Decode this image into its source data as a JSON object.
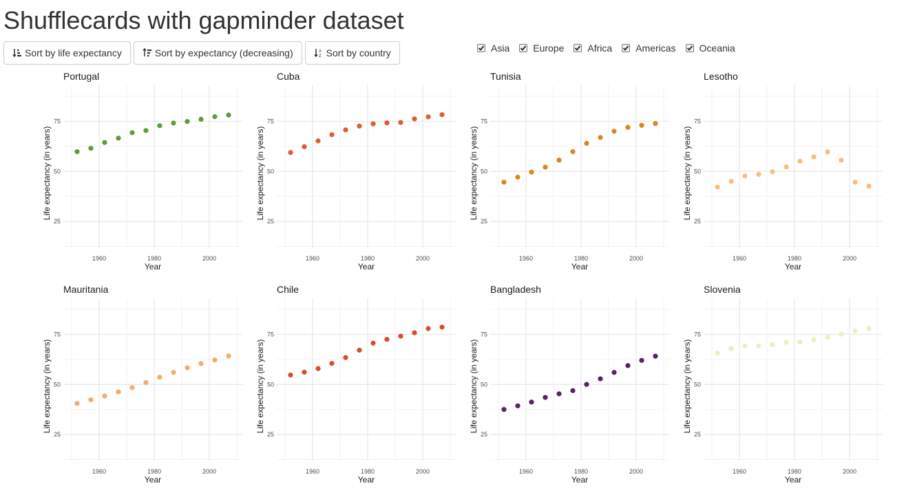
{
  "page": {
    "title": "Shufflecards with gapminder dataset"
  },
  "buttons": [
    {
      "id": "sort-life",
      "label": "Sort by life expectancy",
      "icon": "sort-amount-asc-icon"
    },
    {
      "id": "sort-life-desc",
      "label": "Sort by expectancy (decreasing)",
      "icon": "sort-amount-desc-icon"
    },
    {
      "id": "sort-country",
      "label": "Sort by country",
      "icon": "sort-alpha-asc-icon"
    }
  ],
  "filters": [
    {
      "label": "Asia",
      "checked": true
    },
    {
      "label": "Europe",
      "checked": true
    },
    {
      "label": "Africa",
      "checked": true
    },
    {
      "label": "Americas",
      "checked": true
    },
    {
      "label": "Oceania",
      "checked": true
    }
  ],
  "chart_data": [
    {
      "type": "scatter",
      "title": "Portugal",
      "color": "#5e9c3b",
      "x": [
        1952,
        1957,
        1962,
        1967,
        1972,
        1977,
        1982,
        1987,
        1992,
        1997,
        2002,
        2007
      ],
      "values": [
        59.8,
        61.5,
        64.4,
        66.6,
        69.3,
        70.4,
        72.8,
        74.1,
        74.9,
        76.0,
        77.3,
        78.1
      ],
      "xlabel": "Year",
      "ylabel": "Life expectancy (in years)",
      "xticks": [
        1960,
        1980,
        2000
      ],
      "yticks": [
        25,
        50,
        75
      ],
      "xlim": [
        1947,
        2012
      ],
      "ylim": [
        12,
        93
      ]
    },
    {
      "type": "scatter",
      "title": "Cuba",
      "color": "#e15a35",
      "x": [
        1952,
        1957,
        1962,
        1967,
        1972,
        1977,
        1982,
        1987,
        1992,
        1997,
        2002,
        2007
      ],
      "values": [
        59.4,
        62.3,
        65.2,
        68.3,
        70.7,
        72.6,
        73.7,
        74.2,
        74.4,
        76.2,
        77.2,
        78.3
      ],
      "xlabel": "Year",
      "ylabel": "Life expectancy (in years)",
      "xticks": [
        1960,
        1980,
        2000
      ],
      "yticks": [
        25,
        50,
        75
      ],
      "xlim": [
        1947,
        2012
      ],
      "ylim": [
        12,
        93
      ]
    },
    {
      "type": "scatter",
      "title": "Tunisia",
      "color": "#d8861e",
      "x": [
        1952,
        1957,
        1962,
        1967,
        1972,
        1977,
        1982,
        1987,
        1992,
        1997,
        2002,
        2007
      ],
      "values": [
        44.6,
        47.1,
        49.6,
        52.1,
        55.6,
        59.8,
        64.0,
        66.9,
        70.0,
        71.97,
        73.0,
        73.9
      ],
      "xlabel": "Year",
      "ylabel": "Life expectancy (in years)",
      "xticks": [
        1960,
        1980,
        2000
      ],
      "yticks": [
        25,
        50,
        75
      ],
      "xlim": [
        1947,
        2012
      ],
      "ylim": [
        12,
        93
      ]
    },
    {
      "type": "scatter",
      "title": "Lesotho",
      "color": "#f9bd7e",
      "x": [
        1952,
        1957,
        1962,
        1967,
        1972,
        1977,
        1982,
        1987,
        1992,
        1997,
        2002,
        2007
      ],
      "values": [
        42.1,
        45.0,
        47.7,
        48.5,
        49.8,
        52.2,
        55.1,
        57.2,
        59.7,
        55.6,
        44.6,
        42.6
      ],
      "xlabel": "Year",
      "ylabel": "Life expectancy (in years)",
      "xticks": [
        1960,
        1980,
        2000
      ],
      "yticks": [
        25,
        50,
        75
      ],
      "xlim": [
        1947,
        2012
      ],
      "ylim": [
        12,
        93
      ]
    },
    {
      "type": "scatter",
      "title": "Mauritania",
      "color": "#f5ac66",
      "x": [
        1952,
        1957,
        1962,
        1967,
        1972,
        1977,
        1982,
        1987,
        1992,
        1997,
        2002,
        2007
      ],
      "values": [
        40.5,
        42.3,
        44.2,
        46.3,
        48.4,
        50.9,
        53.6,
        56.0,
        58.3,
        60.4,
        62.2,
        64.2
      ],
      "xlabel": "Year",
      "ylabel": "Life expectancy (in years)",
      "xticks": [
        1960,
        1980,
        2000
      ],
      "yticks": [
        25,
        50,
        75
      ],
      "xlim": [
        1947,
        2012
      ],
      "ylim": [
        12,
        93
      ]
    },
    {
      "type": "scatter",
      "title": "Chile",
      "color": "#dc4b2f",
      "x": [
        1952,
        1957,
        1962,
        1967,
        1972,
        1977,
        1982,
        1987,
        1992,
        1997,
        2002,
        2007
      ],
      "values": [
        54.7,
        56.1,
        57.9,
        60.5,
        63.4,
        67.1,
        70.6,
        72.5,
        74.1,
        75.8,
        77.9,
        78.6
      ],
      "xlabel": "Year",
      "ylabel": "Life expectancy (in years)",
      "xticks": [
        1960,
        1980,
        2000
      ],
      "yticks": [
        25,
        50,
        75
      ],
      "xlim": [
        1947,
        2012
      ],
      "ylim": [
        12,
        93
      ]
    },
    {
      "type": "scatter",
      "title": "Bangladesh",
      "color": "#5b2068",
      "x": [
        1952,
        1957,
        1962,
        1967,
        1972,
        1977,
        1982,
        1987,
        1992,
        1997,
        2002,
        2007
      ],
      "values": [
        37.5,
        39.3,
        41.2,
        43.5,
        45.3,
        46.9,
        50.0,
        52.8,
        56.0,
        59.4,
        62.0,
        64.1
      ],
      "xlabel": "Year",
      "ylabel": "Life expectancy (in years)",
      "xticks": [
        1960,
        1980,
        2000
      ],
      "yticks": [
        25,
        50,
        75
      ],
      "xlim": [
        1947,
        2012
      ],
      "ylim": [
        12,
        93
      ]
    },
    {
      "type": "scatter",
      "title": "Slovenia",
      "color": "#eaf0bf",
      "x": [
        1952,
        1957,
        1962,
        1967,
        1972,
        1977,
        1982,
        1987,
        1992,
        1997,
        2002,
        2007
      ],
      "values": [
        65.6,
        67.9,
        69.2,
        69.2,
        69.8,
        70.97,
        71.1,
        72.3,
        73.6,
        75.1,
        76.7,
        77.9
      ],
      "xlabel": "Year",
      "ylabel": "Life expectancy (in years)",
      "xticks": [
        1960,
        1980,
        2000
      ],
      "yticks": [
        25,
        50,
        75
      ],
      "xlim": [
        1947,
        2012
      ],
      "ylim": [
        12,
        93
      ]
    }
  ]
}
